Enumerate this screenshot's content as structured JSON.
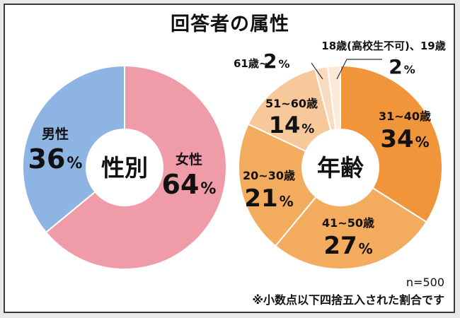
{
  "title": "回答者の属性",
  "footer": {
    "n": "n=500",
    "note": "※小数点以下四捨五入された割合です"
  },
  "colors": {
    "female": "#f09ca8",
    "male": "#8db4e2",
    "age_31_40": "#f0953a",
    "age_41_50": "#f3ab5e",
    "age_20_30": "#f3ab5e",
    "age_51_60": "#f7c89a",
    "age_61": "#f9dcc0",
    "age_18_19": "#fce9d8"
  },
  "chart_data": [
    {
      "type": "pie",
      "title": "性別",
      "center_label": "性別",
      "slices": [
        {
          "label": "女性",
          "value": 64,
          "value_label": "64",
          "color_key": "female"
        },
        {
          "label": "男性",
          "value": 36,
          "value_label": "36",
          "color_key": "male"
        }
      ]
    },
    {
      "type": "pie",
      "title": "年齢",
      "center_label": "年齢",
      "slices": [
        {
          "label": "31~40歳",
          "value": 34,
          "value_label": "34",
          "color_key": "age_31_40"
        },
        {
          "label": "41~50歳",
          "value": 27,
          "value_label": "27",
          "color_key": "age_41_50"
        },
        {
          "label": "20~30歳",
          "value": 21,
          "value_label": "21",
          "color_key": "age_20_30"
        },
        {
          "label": "51~60歳",
          "value": 14,
          "value_label": "14",
          "color_key": "age_51_60"
        },
        {
          "label": "61歳~",
          "value": 2,
          "value_label": "2",
          "color_key": "age_61"
        },
        {
          "label": "18歳(高校生不可)、19歳",
          "value": 2,
          "value_label": "2",
          "color_key": "age_18_19"
        }
      ]
    }
  ]
}
